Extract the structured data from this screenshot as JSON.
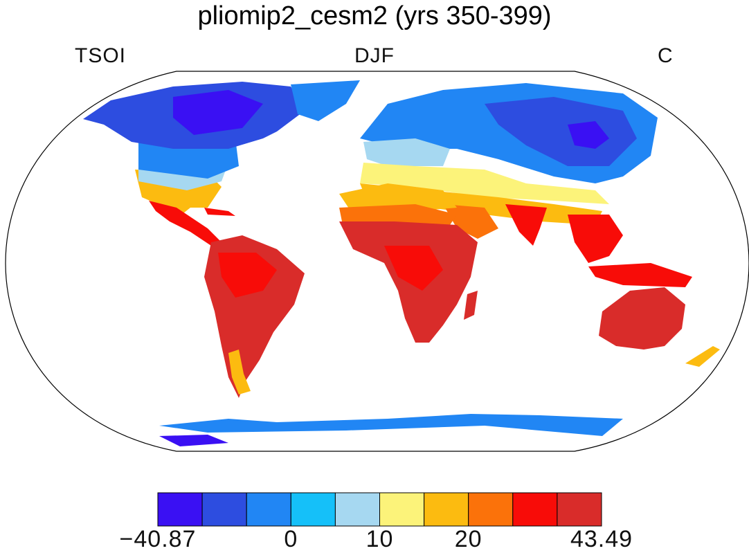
{
  "title": "pliomip2_cesm2 (yrs 350-399)",
  "variable": "TSOI",
  "season": "DJF",
  "units": "C",
  "colorbar": {
    "colors": [
      "#3a10f3",
      "#2d4de0",
      "#2186f4",
      "#15c0f9",
      "#a6d8f1",
      "#fcf37a",
      "#fcbb10",
      "#fb720a",
      "#f80c08",
      "#d92c2a"
    ],
    "labels": [
      {
        "text": "−40.87",
        "index": 0
      },
      {
        "text": "0",
        "index": 3
      },
      {
        "text": "10",
        "index": 5
      },
      {
        "text": "20",
        "index": 7
      },
      {
        "text": "43.49",
        "index": 10
      }
    ]
  }
}
